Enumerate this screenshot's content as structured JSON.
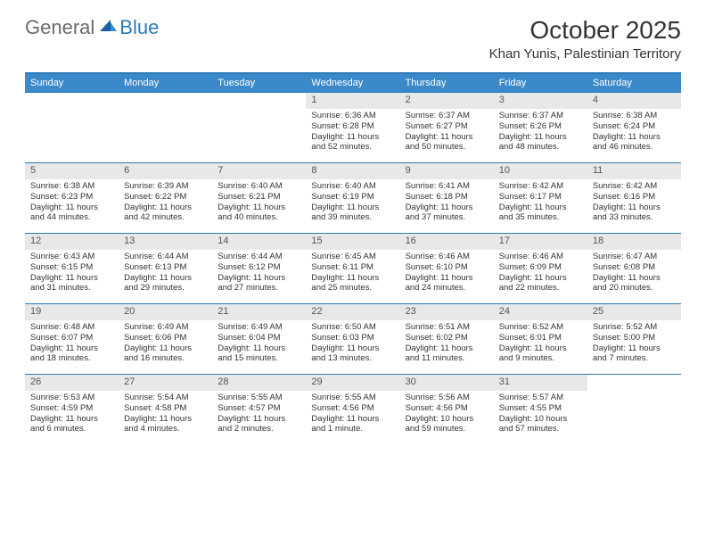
{
  "logo": {
    "general": "General",
    "blue": "Blue"
  },
  "title": "October 2025",
  "location": "Khan Yunis, Palestinian Territory",
  "colors": {
    "header_bar": "#3b89c9",
    "accent_border": "#2a7ab8",
    "daynum_bg": "#e8e8e8",
    "text": "#333333",
    "logo_gray": "#6b6b6b",
    "logo_blue": "#2a7ab8"
  },
  "dow": [
    "Sunday",
    "Monday",
    "Tuesday",
    "Wednesday",
    "Thursday",
    "Friday",
    "Saturday"
  ],
  "weeks": [
    [
      {
        "empty": true
      },
      {
        "empty": true
      },
      {
        "empty": true
      },
      {
        "num": "1",
        "sunrise": "Sunrise: 6:36 AM",
        "sunset": "Sunset: 6:28 PM",
        "daylight": "Daylight: 11 hours and 52 minutes."
      },
      {
        "num": "2",
        "sunrise": "Sunrise: 6:37 AM",
        "sunset": "Sunset: 6:27 PM",
        "daylight": "Daylight: 11 hours and 50 minutes."
      },
      {
        "num": "3",
        "sunrise": "Sunrise: 6:37 AM",
        "sunset": "Sunset: 6:26 PM",
        "daylight": "Daylight: 11 hours and 48 minutes."
      },
      {
        "num": "4",
        "sunrise": "Sunrise: 6:38 AM",
        "sunset": "Sunset: 6:24 PM",
        "daylight": "Daylight: 11 hours and 46 minutes."
      }
    ],
    [
      {
        "num": "5",
        "sunrise": "Sunrise: 6:38 AM",
        "sunset": "Sunset: 6:23 PM",
        "daylight": "Daylight: 11 hours and 44 minutes."
      },
      {
        "num": "6",
        "sunrise": "Sunrise: 6:39 AM",
        "sunset": "Sunset: 6:22 PM",
        "daylight": "Daylight: 11 hours and 42 minutes."
      },
      {
        "num": "7",
        "sunrise": "Sunrise: 6:40 AM",
        "sunset": "Sunset: 6:21 PM",
        "daylight": "Daylight: 11 hours and 40 minutes."
      },
      {
        "num": "8",
        "sunrise": "Sunrise: 6:40 AM",
        "sunset": "Sunset: 6:19 PM",
        "daylight": "Daylight: 11 hours and 39 minutes."
      },
      {
        "num": "9",
        "sunrise": "Sunrise: 6:41 AM",
        "sunset": "Sunset: 6:18 PM",
        "daylight": "Daylight: 11 hours and 37 minutes."
      },
      {
        "num": "10",
        "sunrise": "Sunrise: 6:42 AM",
        "sunset": "Sunset: 6:17 PM",
        "daylight": "Daylight: 11 hours and 35 minutes."
      },
      {
        "num": "11",
        "sunrise": "Sunrise: 6:42 AM",
        "sunset": "Sunset: 6:16 PM",
        "daylight": "Daylight: 11 hours and 33 minutes."
      }
    ],
    [
      {
        "num": "12",
        "sunrise": "Sunrise: 6:43 AM",
        "sunset": "Sunset: 6:15 PM",
        "daylight": "Daylight: 11 hours and 31 minutes."
      },
      {
        "num": "13",
        "sunrise": "Sunrise: 6:44 AM",
        "sunset": "Sunset: 6:13 PM",
        "daylight": "Daylight: 11 hours and 29 minutes."
      },
      {
        "num": "14",
        "sunrise": "Sunrise: 6:44 AM",
        "sunset": "Sunset: 6:12 PM",
        "daylight": "Daylight: 11 hours and 27 minutes."
      },
      {
        "num": "15",
        "sunrise": "Sunrise: 6:45 AM",
        "sunset": "Sunset: 6:11 PM",
        "daylight": "Daylight: 11 hours and 25 minutes."
      },
      {
        "num": "16",
        "sunrise": "Sunrise: 6:46 AM",
        "sunset": "Sunset: 6:10 PM",
        "daylight": "Daylight: 11 hours and 24 minutes."
      },
      {
        "num": "17",
        "sunrise": "Sunrise: 6:46 AM",
        "sunset": "Sunset: 6:09 PM",
        "daylight": "Daylight: 11 hours and 22 minutes."
      },
      {
        "num": "18",
        "sunrise": "Sunrise: 6:47 AM",
        "sunset": "Sunset: 6:08 PM",
        "daylight": "Daylight: 11 hours and 20 minutes."
      }
    ],
    [
      {
        "num": "19",
        "sunrise": "Sunrise: 6:48 AM",
        "sunset": "Sunset: 6:07 PM",
        "daylight": "Daylight: 11 hours and 18 minutes."
      },
      {
        "num": "20",
        "sunrise": "Sunrise: 6:49 AM",
        "sunset": "Sunset: 6:06 PM",
        "daylight": "Daylight: 11 hours and 16 minutes."
      },
      {
        "num": "21",
        "sunrise": "Sunrise: 6:49 AM",
        "sunset": "Sunset: 6:04 PM",
        "daylight": "Daylight: 11 hours and 15 minutes."
      },
      {
        "num": "22",
        "sunrise": "Sunrise: 6:50 AM",
        "sunset": "Sunset: 6:03 PM",
        "daylight": "Daylight: 11 hours and 13 minutes."
      },
      {
        "num": "23",
        "sunrise": "Sunrise: 6:51 AM",
        "sunset": "Sunset: 6:02 PM",
        "daylight": "Daylight: 11 hours and 11 minutes."
      },
      {
        "num": "24",
        "sunrise": "Sunrise: 6:52 AM",
        "sunset": "Sunset: 6:01 PM",
        "daylight": "Daylight: 11 hours and 9 minutes."
      },
      {
        "num": "25",
        "sunrise": "Sunrise: 5:52 AM",
        "sunset": "Sunset: 5:00 PM",
        "daylight": "Daylight: 11 hours and 7 minutes."
      }
    ],
    [
      {
        "num": "26",
        "sunrise": "Sunrise: 5:53 AM",
        "sunset": "Sunset: 4:59 PM",
        "daylight": "Daylight: 11 hours and 6 minutes."
      },
      {
        "num": "27",
        "sunrise": "Sunrise: 5:54 AM",
        "sunset": "Sunset: 4:58 PM",
        "daylight": "Daylight: 11 hours and 4 minutes."
      },
      {
        "num": "28",
        "sunrise": "Sunrise: 5:55 AM",
        "sunset": "Sunset: 4:57 PM",
        "daylight": "Daylight: 11 hours and 2 minutes."
      },
      {
        "num": "29",
        "sunrise": "Sunrise: 5:55 AM",
        "sunset": "Sunset: 4:56 PM",
        "daylight": "Daylight: 11 hours and 1 minute."
      },
      {
        "num": "30",
        "sunrise": "Sunrise: 5:56 AM",
        "sunset": "Sunset: 4:56 PM",
        "daylight": "Daylight: 10 hours and 59 minutes."
      },
      {
        "num": "31",
        "sunrise": "Sunrise: 5:57 AM",
        "sunset": "Sunset: 4:55 PM",
        "daylight": "Daylight: 10 hours and 57 minutes."
      },
      {
        "empty": true
      }
    ]
  ]
}
